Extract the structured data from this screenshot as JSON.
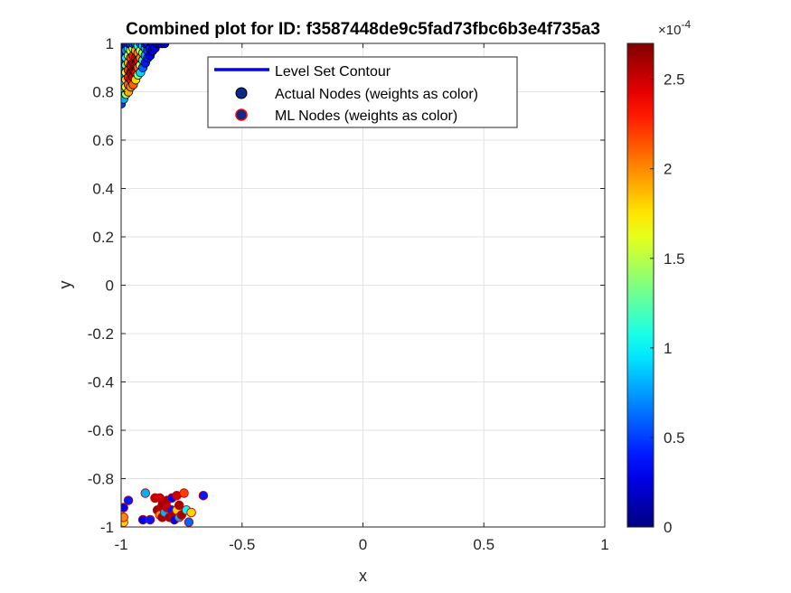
{
  "chart_data": {
    "type": "scatter",
    "title": "Combined plot for ID: f3587448de9c5fad73fbc6b3e4f735a3",
    "xlabel": "x",
    "ylabel": "y",
    "xlim": [
      -1,
      1
    ],
    "ylim": [
      -1,
      1
    ],
    "xticks": [
      -1,
      -0.5,
      0,
      0.5,
      1
    ],
    "xtick_labels": [
      "-1",
      "-0.5",
      "0",
      "0.5",
      "1"
    ],
    "yticks": [
      -1,
      -0.8,
      -0.6,
      -0.4,
      -0.2,
      0,
      0.2,
      0.4,
      0.6,
      0.8,
      1
    ],
    "ytick_labels": [
      "-1",
      "-0.8",
      "-0.6",
      "-0.4",
      "-0.2",
      "0",
      "0.2",
      "0.4",
      "0.6",
      "0.8",
      "1"
    ],
    "grid": true,
    "legend": {
      "placement": "top-center",
      "entries": [
        {
          "label": "Level Set Contour",
          "kind": "line",
          "color": "#0000ff"
        },
        {
          "label": "Actual Nodes (weights as color)",
          "kind": "marker",
          "face": "#0a2a8a",
          "edge": "#000000"
        },
        {
          "label": "ML Nodes (weights as color)",
          "kind": "marker",
          "face": "#0a2a8a",
          "edge": "#ff0000"
        }
      ]
    },
    "colorbar": {
      "colormap": "jet",
      "lim": [
        0,
        2.7
      ],
      "ticks": [
        0,
        0.5,
        1,
        1.5,
        2,
        2.5
      ],
      "tick_labels": [
        "0",
        "0.5",
        "1",
        "1.5",
        "2",
        "2.5"
      ],
      "exponent_base": "×10",
      "exponent_power": "-4"
    },
    "series": [
      {
        "name": "Actual Nodes (weights as color)",
        "edge": "#000000",
        "points": [
          [
            -1.0,
            0.75,
            0.5
          ],
          [
            -0.99,
            0.77,
            0.8
          ],
          [
            -0.99,
            0.8,
            1.0
          ],
          [
            -0.99,
            0.83,
            0.9
          ],
          [
            -0.99,
            0.86,
            0.7
          ],
          [
            -0.99,
            0.89,
            0.6
          ],
          [
            -0.99,
            0.92,
            0.5
          ],
          [
            -0.99,
            0.95,
            0.4
          ],
          [
            -0.99,
            0.98,
            0.4
          ],
          [
            -0.99,
            1.0,
            0.3
          ],
          [
            -0.98,
            0.79,
            1.4
          ],
          [
            -0.98,
            0.82,
            1.7
          ],
          [
            -0.98,
            0.85,
            1.8
          ],
          [
            -0.98,
            0.88,
            1.6
          ],
          [
            -0.98,
            0.91,
            1.3
          ],
          [
            -0.98,
            0.94,
            1.0
          ],
          [
            -0.98,
            0.97,
            0.7
          ],
          [
            -0.98,
            1.0,
            0.4
          ],
          [
            -0.97,
            0.8,
            1.9
          ],
          [
            -0.97,
            0.83,
            2.1
          ],
          [
            -0.97,
            0.86,
            2.3
          ],
          [
            -0.97,
            0.89,
            2.2
          ],
          [
            -0.97,
            0.92,
            1.9
          ],
          [
            -0.97,
            0.95,
            1.4
          ],
          [
            -0.97,
            0.98,
            0.9
          ],
          [
            -0.97,
            1.0,
            0.4
          ],
          [
            -0.96,
            0.82,
            2.0
          ],
          [
            -0.96,
            0.85,
            2.4
          ],
          [
            -0.96,
            0.88,
            2.6
          ],
          [
            -0.96,
            0.91,
            2.5
          ],
          [
            -0.96,
            0.94,
            2.2
          ],
          [
            -0.96,
            0.97,
            1.6
          ],
          [
            -0.96,
            1.0,
            0.5
          ],
          [
            -0.95,
            0.83,
            2.1
          ],
          [
            -0.95,
            0.86,
            2.5
          ],
          [
            -0.95,
            0.89,
            2.7
          ],
          [
            -0.95,
            0.92,
            2.6
          ],
          [
            -0.95,
            0.95,
            2.3
          ],
          [
            -0.95,
            0.98,
            1.5
          ],
          [
            -0.95,
            1.0,
            0.5
          ],
          [
            -0.94,
            0.85,
            1.8
          ],
          [
            -0.94,
            0.88,
            2.4
          ],
          [
            -0.94,
            0.91,
            2.6
          ],
          [
            -0.94,
            0.94,
            2.5
          ],
          [
            -0.94,
            0.97,
            1.9
          ],
          [
            -0.94,
            1.0,
            0.6
          ],
          [
            -0.93,
            0.87,
            1.4
          ],
          [
            -0.93,
            0.9,
            2.1
          ],
          [
            -0.93,
            0.93,
            2.4
          ],
          [
            -0.93,
            0.96,
            2.0
          ],
          [
            -0.93,
            0.99,
            1.0
          ],
          [
            -0.92,
            0.88,
            0.9
          ],
          [
            -0.92,
            0.91,
            1.6
          ],
          [
            -0.92,
            0.94,
            2.0
          ],
          [
            -0.92,
            0.97,
            1.6
          ],
          [
            -0.92,
            1.0,
            0.6
          ],
          [
            -0.91,
            0.9,
            0.6
          ],
          [
            -0.91,
            0.93,
            1.1
          ],
          [
            -0.91,
            0.96,
            1.4
          ],
          [
            -0.91,
            0.99,
            0.9
          ],
          [
            -0.9,
            0.92,
            0.4
          ],
          [
            -0.9,
            0.95,
            0.8
          ],
          [
            -0.9,
            0.98,
            0.8
          ],
          [
            -0.9,
            1.0,
            0.4
          ],
          [
            -0.89,
            0.94,
            0.4
          ],
          [
            -0.89,
            0.97,
            0.5
          ],
          [
            -0.89,
            1.0,
            0.4
          ],
          [
            -0.88,
            0.95,
            0.3
          ],
          [
            -0.88,
            0.98,
            0.4
          ],
          [
            -0.87,
            0.97,
            0.3
          ],
          [
            -0.87,
            1.0,
            0.3
          ],
          [
            -0.86,
            0.98,
            0.3
          ],
          [
            -0.85,
            1.0,
            0.3
          ],
          [
            -0.84,
            1.0,
            0.3
          ],
          [
            -0.83,
            1.0,
            0.3
          ],
          [
            -0.82,
            1.0,
            0.3
          ]
        ]
      },
      {
        "name": "ML Nodes (weights as color)",
        "edge": "#c00000",
        "points": [
          [
            -0.99,
            -0.98,
            1.8
          ],
          [
            -0.99,
            -0.96,
            2.0
          ],
          [
            -0.99,
            -0.92,
            0.3
          ],
          [
            -0.97,
            -0.89,
            0.4
          ],
          [
            -0.91,
            -0.97,
            0.3
          ],
          [
            -0.9,
            -0.86,
            0.8
          ],
          [
            -0.88,
            -0.97,
            0.4
          ],
          [
            -0.86,
            -0.88,
            2.5
          ],
          [
            -0.85,
            -0.93,
            2.6
          ],
          [
            -0.84,
            -0.95,
            2.0
          ],
          [
            -0.84,
            -0.88,
            2.5
          ],
          [
            -0.83,
            -0.91,
            2.6
          ],
          [
            -0.83,
            -0.96,
            2.6
          ],
          [
            -0.82,
            -0.94,
            0.8
          ],
          [
            -0.81,
            -0.89,
            2.6
          ],
          [
            -0.81,
            -0.92,
            2.5
          ],
          [
            -0.8,
            -0.96,
            2.6
          ],
          [
            -0.79,
            -0.93,
            0.4
          ],
          [
            -0.79,
            -0.88,
            0.3
          ],
          [
            -0.78,
            -0.95,
            2.6
          ],
          [
            -0.78,
            -0.97,
            0.3
          ],
          [
            -0.77,
            -0.87,
            2.5
          ],
          [
            -0.77,
            -0.93,
            1.8
          ],
          [
            -0.76,
            -0.91,
            2.6
          ],
          [
            -0.76,
            -0.96,
            0.8
          ],
          [
            -0.75,
            -0.95,
            2.6
          ],
          [
            -0.74,
            -0.86,
            2.2
          ],
          [
            -0.73,
            -0.93,
            1.0
          ],
          [
            -0.72,
            -0.98,
            0.6
          ],
          [
            -0.71,
            -0.94,
            1.8
          ],
          [
            -0.66,
            -0.87,
            0.4
          ]
        ]
      }
    ]
  }
}
